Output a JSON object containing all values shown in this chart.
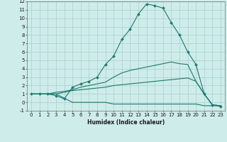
{
  "title": "",
  "xlabel": "Humidex (Indice chaleur)",
  "ylabel": "",
  "background_color": "#ceecea",
  "grid_color": "#aacfcc",
  "line_color": "#1a7a6e",
  "xlim": [
    -0.5,
    23.5
  ],
  "ylim": [
    -1,
    12
  ],
  "xticks": [
    0,
    1,
    2,
    3,
    4,
    5,
    6,
    7,
    8,
    9,
    10,
    11,
    12,
    13,
    14,
    15,
    16,
    17,
    18,
    19,
    20,
    21,
    22,
    23
  ],
  "yticks": [
    -1,
    0,
    1,
    2,
    3,
    4,
    5,
    6,
    7,
    8,
    9,
    10,
    11,
    12
  ],
  "series": [
    {
      "x": [
        0,
        1,
        2,
        3,
        4,
        5,
        6,
        7,
        8,
        9,
        10,
        11,
        12,
        13,
        14,
        15,
        16,
        17,
        18,
        19,
        20,
        21,
        22,
        23
      ],
      "y": [
        1,
        1,
        1,
        1,
        0.5,
        0.0,
        0.0,
        0.0,
        0.0,
        0.0,
        -0.2,
        -0.2,
        -0.2,
        -0.2,
        -0.2,
        -0.2,
        -0.2,
        -0.2,
        -0.2,
        -0.2,
        -0.2,
        -0.4,
        -0.4,
        -0.4
      ],
      "marker": false
    },
    {
      "x": [
        0,
        1,
        2,
        3,
        4,
        5,
        6,
        7,
        8,
        9,
        10,
        11,
        12,
        13,
        14,
        15,
        16,
        17,
        18,
        19,
        20,
        21,
        22,
        23
      ],
      "y": [
        1,
        1,
        1,
        1,
        1.2,
        1.4,
        1.5,
        1.6,
        1.7,
        1.8,
        2.0,
        2.1,
        2.2,
        2.3,
        2.4,
        2.5,
        2.6,
        2.7,
        2.8,
        2.9,
        2.5,
        1.0,
        -0.3,
        -0.4
      ],
      "marker": false
    },
    {
      "x": [
        0,
        1,
        2,
        3,
        4,
        5,
        6,
        7,
        8,
        9,
        10,
        11,
        12,
        13,
        14,
        15,
        16,
        17,
        18,
        19,
        20,
        21,
        22,
        23
      ],
      "y": [
        1,
        1,
        1,
        1.2,
        1.3,
        1.5,
        1.8,
        2.0,
        2.2,
        2.4,
        3.0,
        3.5,
        3.8,
        4.0,
        4.2,
        4.4,
        4.6,
        4.8,
        4.6,
        4.5,
        2.5,
        1.0,
        -0.3,
        -0.4
      ],
      "marker": false
    },
    {
      "x": [
        0,
        1,
        2,
        3,
        4,
        5,
        6,
        7,
        8,
        9,
        10,
        11,
        12,
        13,
        14,
        15,
        16,
        17,
        18,
        19,
        20,
        21,
        22,
        23
      ],
      "y": [
        1,
        1,
        1,
        0.8,
        0.4,
        1.8,
        2.2,
        2.5,
        3.0,
        4.5,
        5.5,
        7.5,
        8.7,
        10.5,
        11.7,
        11.5,
        11.2,
        9.5,
        8.0,
        6.0,
        4.5,
        1.0,
        -0.3,
        -0.5
      ],
      "marker": true
    }
  ],
  "xlabel_fontsize": 5.5,
  "tick_fontsize": 5.0,
  "linewidth": 0.8,
  "marker_size": 2.0
}
